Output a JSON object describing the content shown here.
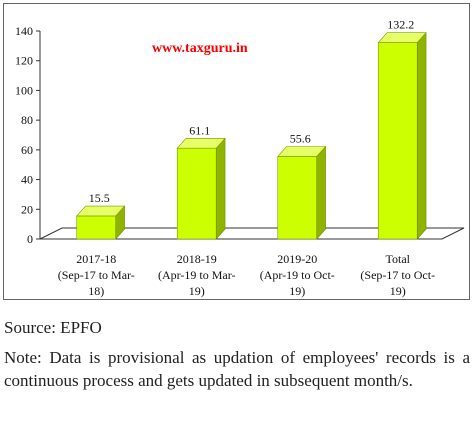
{
  "chart_data": {
    "type": "bar",
    "categories": [
      [
        "2017-18",
        "(Sep-17 to Mar-",
        "18)"
      ],
      [
        "2018-19",
        "(Apr-19 to Mar-",
        "19)"
      ],
      [
        "2019-20",
        "(Apr-19 to Oct-",
        "19)"
      ],
      [
        "Total",
        "(Sep-17 to Oct-",
        "19)"
      ]
    ],
    "values": [
      15.5,
      61.1,
      55.6,
      132.2
    ],
    "data_labels": [
      "15.5",
      "61.1",
      "55.6",
      "132.2"
    ],
    "yticks": [
      "0",
      "20",
      "40",
      "60",
      "80",
      "100",
      "120",
      "140"
    ],
    "ylim": [
      0,
      140
    ],
    "grid": false,
    "legend": "none",
    "style": "3d-column",
    "colors": {
      "bar_front": "#ccff00",
      "bar_side": "#8fb400",
      "bar_top": "#e6ff66",
      "floor": "#ffffff",
      "axis": "#333333"
    }
  },
  "watermark": {
    "text": "www.taxguru.in",
    "color": "#ff0000"
  },
  "source": "Source: EPFO",
  "note": "Note: Data is provisional as updation of employees' records is a continuous process and gets updated in subsequent month/s."
}
